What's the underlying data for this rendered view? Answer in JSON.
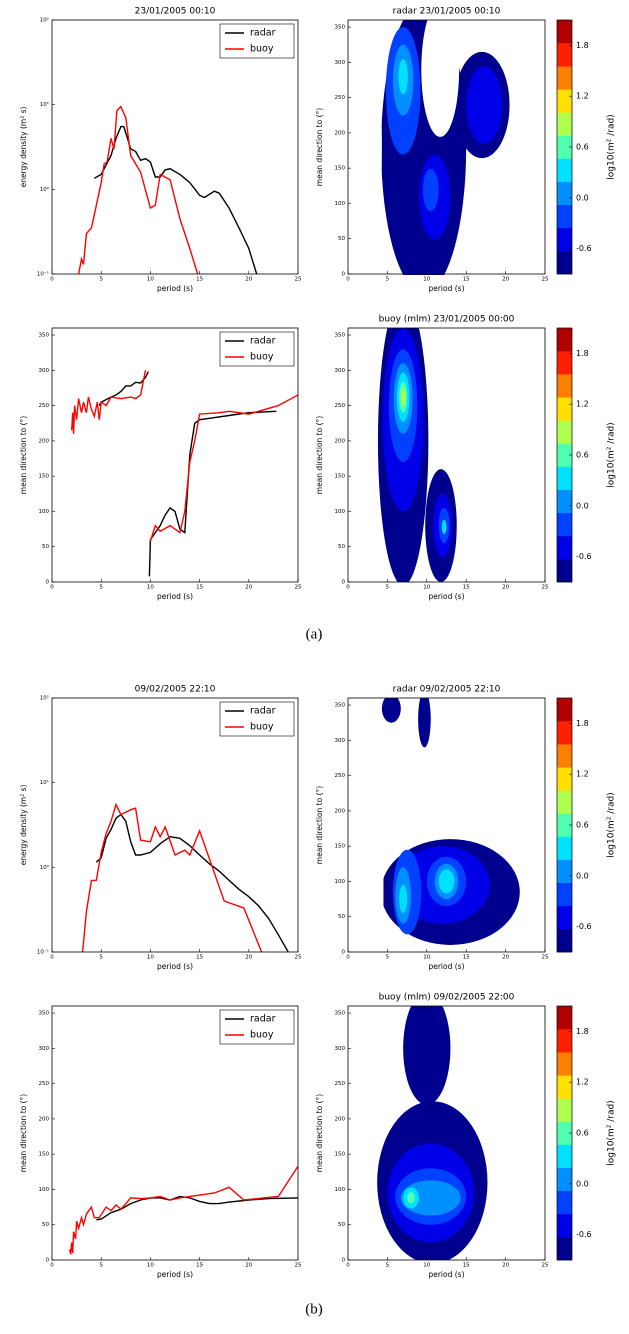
{
  "chart_data": [
    {
      "type": "line",
      "title": "23/01/2005 00:10",
      "xlabel": "period (s)",
      "ylabel": "energy density (m² s)",
      "xlim": [
        0,
        25
      ],
      "xticks": [
        0,
        5,
        10,
        15,
        20,
        25
      ],
      "ylim": [
        0.1,
        100
      ],
      "yticks": [
        {
          "value": 0.1,
          "label": "10⁻¹"
        },
        {
          "value": 1,
          "label": "10⁰"
        },
        {
          "value": 10,
          "label": "10¹"
        },
        {
          "value": 100,
          "label": "10²"
        }
      ],
      "log_y": true,
      "legend": "upper right",
      "series": [
        {
          "name": "radar",
          "color": "#000000",
          "x": [
            4.3,
            5,
            6,
            6.5,
            7,
            7.3,
            8,
            8.5,
            9,
            9.5,
            10,
            10.5,
            11,
            11.5,
            12,
            13,
            14,
            15,
            15.5,
            16.5,
            17,
            18,
            19,
            20,
            20.8
          ],
          "values": [
            1.35,
            1.5,
            2.5,
            4,
            5.5,
            5.5,
            3,
            2.8,
            2.2,
            2.3,
            2.1,
            1.4,
            1.4,
            1.7,
            1.75,
            1.5,
            1.2,
            0.85,
            0.8,
            0.95,
            0.9,
            0.6,
            0.35,
            0.2,
            0.1
          ]
        },
        {
          "name": "buoy",
          "color": "#ff0000",
          "x": [
            2.7,
            3,
            3.2,
            3.5,
            4,
            4.3,
            5,
            5.3,
            5.6,
            6,
            6.3,
            6.6,
            7,
            7.5,
            8,
            9,
            10,
            10.5,
            11,
            12,
            13,
            14,
            14.8
          ],
          "values": [
            0.1,
            0.15,
            0.13,
            0.3,
            0.35,
            0.5,
            1.2,
            2,
            2.1,
            4,
            3,
            8.5,
            9.5,
            7,
            2.5,
            1.6,
            0.6,
            0.65,
            1.5,
            1.3,
            0.45,
            0.2,
            0.1
          ]
        }
      ]
    },
    {
      "type": "contour",
      "title": "radar 23/01/2005 00:10",
      "xlabel": "period (s)",
      "ylabel": "mean direction to (°)",
      "xlim": [
        0,
        25
      ],
      "xticks": [
        0,
        5,
        10,
        15,
        20,
        25
      ],
      "ylim": [
        0,
        360
      ],
      "yticks": [
        0,
        50,
        100,
        150,
        200,
        250,
        300,
        350
      ],
      "colorbar": {
        "label": "log10(m² /rad)",
        "lim": [
          -0.9,
          2.1
        ],
        "ticks": [
          -0.6,
          {
            "value": 0,
            "label": "0.0"
          },
          0.6,
          1.2,
          1.8
        ],
        "colors": [
          "#00008f",
          "#0000e8",
          "#0040ff",
          "#0090ff",
          "#00e0ff",
          "#50ffaf",
          "#afff50",
          "#ffe000",
          "#ff8000",
          "#ff2000",
          "#b00000"
        ]
      }
    },
    {
      "type": "line",
      "title": null,
      "xlabel": "period (s)",
      "ylabel": "mean direction to (°)",
      "xlim": [
        0,
        25
      ],
      "xticks": [
        0,
        5,
        10,
        15,
        20,
        25
      ],
      "ylim": [
        0,
        360
      ],
      "yticks": [
        0,
        50,
        100,
        150,
        200,
        250,
        300,
        350
      ],
      "log_y": false,
      "legend": "upper right",
      "series": [
        {
          "name": "radar",
          "color": "#000000",
          "x": [
            4.8,
            5,
            6,
            6.5,
            7,
            7.5,
            8,
            8.5,
            9,
            9.5,
            9.8,
            null,
            9.9,
            10,
            10.5,
            11,
            11.5,
            12,
            12.5,
            13,
            13.5,
            14,
            14.5,
            15,
            16,
            18,
            20,
            22.8
          ],
          "values": [
            250,
            255,
            262,
            265,
            270,
            278,
            278,
            283,
            282,
            290,
            298,
            null,
            8,
            60,
            70,
            80,
            95,
            105,
            100,
            75,
            70,
            180,
            225,
            230,
            232,
            236,
            240,
            242
          ]
        },
        {
          "name": "buoy",
          "color": "#ff0000",
          "x": [
            2,
            2.1,
            2.2,
            2.3,
            2.5,
            2.7,
            3,
            3.2,
            3.5,
            3.7,
            4,
            4.3,
            4.6,
            4.8,
            5,
            5.5,
            6,
            7,
            8,
            8.5,
            9,
            9.5,
            null,
            10,
            10.5,
            11,
            12,
            13,
            13.5,
            14,
            14.5,
            15,
            17,
            18,
            20,
            23,
            25
          ],
          "values": [
            215,
            240,
            210,
            250,
            230,
            260,
            240,
            255,
            240,
            262,
            245,
            235,
            255,
            230,
            255,
            250,
            262,
            260,
            262,
            260,
            265,
            300,
            null,
            58,
            80,
            72,
            80,
            70,
            100,
            170,
            200,
            238,
            240,
            242,
            238,
            250,
            265
          ]
        }
      ]
    },
    {
      "type": "contour",
      "title": "buoy (mlm) 23/01/2005 00:00",
      "xlabel": "period (s)",
      "ylabel": "mean direction to (°)",
      "xlim": [
        0,
        25
      ],
      "xticks": [
        0,
        5,
        10,
        15,
        20,
        25
      ],
      "ylim": [
        0,
        360
      ],
      "yticks": [
        0,
        50,
        100,
        150,
        200,
        250,
        300,
        350
      ],
      "colorbar": {
        "label": "log10(m² /rad)",
        "lim": [
          -0.9,
          2.1
        ],
        "ticks": [
          -0.6,
          {
            "value": 0,
            "label": "0.0"
          },
          0.6,
          1.2,
          1.8
        ],
        "colors": [
          "#00008f",
          "#0000e8",
          "#0040ff",
          "#0090ff",
          "#00e0ff",
          "#50ffaf",
          "#afff50",
          "#ffe000",
          "#ff8000",
          "#ff2000",
          "#b00000"
        ]
      }
    },
    {
      "type": "line",
      "title": "09/02/2005 22:10",
      "xlabel": "period (s)",
      "ylabel": "energy density (m² s)",
      "xlim": [
        0,
        25
      ],
      "xticks": [
        0,
        5,
        10,
        15,
        20,
        25
      ],
      "ylim": [
        0.1,
        100
      ],
      "yticks": [
        {
          "value": 0.1,
          "label": "10⁻¹"
        },
        {
          "value": 1,
          "label": "10⁰"
        },
        {
          "value": 10,
          "label": "10¹"
        },
        {
          "value": 100,
          "label": "10²"
        }
      ],
      "log_y": true,
      "legend": "upper right",
      "series": [
        {
          "name": "radar",
          "color": "#000000",
          "x": [
            4.5,
            5,
            5.5,
            6,
            6.5,
            7,
            7.5,
            8,
            8.5,
            9,
            10,
            11,
            12,
            13,
            14,
            15,
            16,
            17,
            18,
            19,
            20,
            21,
            22,
            23,
            24
          ],
          "values": [
            1.15,
            1.3,
            2.2,
            2.8,
            3.8,
            4.2,
            3.5,
            2,
            1.4,
            1.4,
            1.5,
            1.9,
            2.3,
            2.2,
            1.8,
            1.4,
            1.1,
            0.9,
            0.7,
            0.55,
            0.45,
            0.35,
            0.25,
            0.16,
            0.1
          ]
        },
        {
          "name": "buoy",
          "color": "#ff0000",
          "x": [
            3.1,
            3.2,
            3.5,
            4,
            4.5,
            5,
            5.5,
            6,
            6.5,
            7,
            8,
            8.5,
            9,
            10,
            10.5,
            11,
            11.5,
            12.5,
            13.5,
            14,
            15,
            17.5,
            19.5,
            21.3
          ],
          "values": [
            0.1,
            0.13,
            0.3,
            0.7,
            0.7,
            1.5,
            2.5,
            3.5,
            5.5,
            4.2,
            4.8,
            5,
            2.1,
            2,
            3,
            2.3,
            3,
            1.4,
            1.6,
            1.4,
            2.7,
            0.4,
            0.33,
            0.1
          ]
        }
      ]
    },
    {
      "type": "contour",
      "title": "radar 09/02/2005 22:10",
      "xlabel": "period (s)",
      "ylabel": "mean direction to (°)",
      "xlim": [
        0,
        25
      ],
      "xticks": [
        0,
        5,
        10,
        15,
        20,
        25
      ],
      "ylim": [
        0,
        360
      ],
      "yticks": [
        0,
        50,
        100,
        150,
        200,
        250,
        300,
        350
      ],
      "colorbar": {
        "label": "log10(m² /rad)",
        "lim": [
          -0.9,
          2.1
        ],
        "ticks": [
          -0.6,
          {
            "value": 0,
            "label": "0.0"
          },
          0.6,
          1.2,
          1.8
        ],
        "colors": [
          "#00008f",
          "#0000e8",
          "#0040ff",
          "#0090ff",
          "#00e0ff",
          "#50ffaf",
          "#afff50",
          "#ffe000",
          "#ff8000",
          "#ff2000",
          "#b00000"
        ]
      }
    },
    {
      "type": "line",
      "title": null,
      "xlabel": "period (s)",
      "ylabel": "mean direction to (°)",
      "xlim": [
        0,
        25
      ],
      "xticks": [
        0,
        5,
        10,
        15,
        20,
        25
      ],
      "ylim": [
        0,
        360
      ],
      "yticks": [
        0,
        50,
        100,
        150,
        200,
        250,
        300,
        350
      ],
      "log_y": false,
      "legend": "upper right",
      "series": [
        {
          "name": "radar",
          "color": "#000000",
          "x": [
            4.5,
            5,
            6,
            7,
            8,
            9,
            10,
            11,
            12,
            13,
            14,
            15,
            16,
            17,
            18,
            20,
            22,
            25
          ],
          "values": [
            57,
            58,
            67,
            72,
            80,
            85,
            88,
            88,
            85,
            90,
            88,
            83,
            80,
            80,
            82,
            85,
            87,
            88
          ]
        },
        {
          "name": "buoy",
          "color": "#ff0000",
          "x": [
            1.8,
            1.9,
            2,
            2.1,
            2.2,
            2.4,
            2.5,
            2.7,
            3,
            3.2,
            3.5,
            4,
            4.3,
            4.8,
            5.5,
            6,
            6.5,
            7,
            8,
            9,
            10,
            11,
            12,
            13,
            14,
            15,
            16.5,
            18,
            19.5,
            21.5,
            23,
            25
          ],
          "values": [
            15,
            8,
            25,
            10,
            40,
            30,
            55,
            45,
            60,
            50,
            65,
            75,
            60,
            60,
            75,
            70,
            78,
            72,
            88,
            87,
            88,
            90,
            85,
            88,
            90,
            92,
            95,
            103,
            85,
            88,
            90,
            133
          ]
        }
      ]
    },
    {
      "type": "contour",
      "title": "buoy (mlm) 09/02/2005 22:00",
      "xlabel": "period (s)",
      "ylabel": "mean direction to (°)",
      "xlim": [
        0,
        25
      ],
      "xticks": [
        0,
        5,
        10,
        15,
        20,
        25
      ],
      "ylim": [
        0,
        360
      ],
      "yticks": [
        0,
        50,
        100,
        150,
        200,
        250,
        300,
        350
      ],
      "colorbar": {
        "label": "log10(m² /rad)",
        "lim": [
          -0.9,
          2.1
        ],
        "ticks": [
          -0.6,
          {
            "value": 0,
            "label": "0.0"
          },
          0.6,
          1.2,
          1.8
        ],
        "colors": [
          "#00008f",
          "#0000e8",
          "#0040ff",
          "#0090ff",
          "#00e0ff",
          "#50ffaf",
          "#afff50",
          "#ffe000",
          "#ff8000",
          "#ff2000",
          "#b00000"
        ]
      }
    }
  ],
  "captions": [
    "(a)",
    "(b)"
  ]
}
